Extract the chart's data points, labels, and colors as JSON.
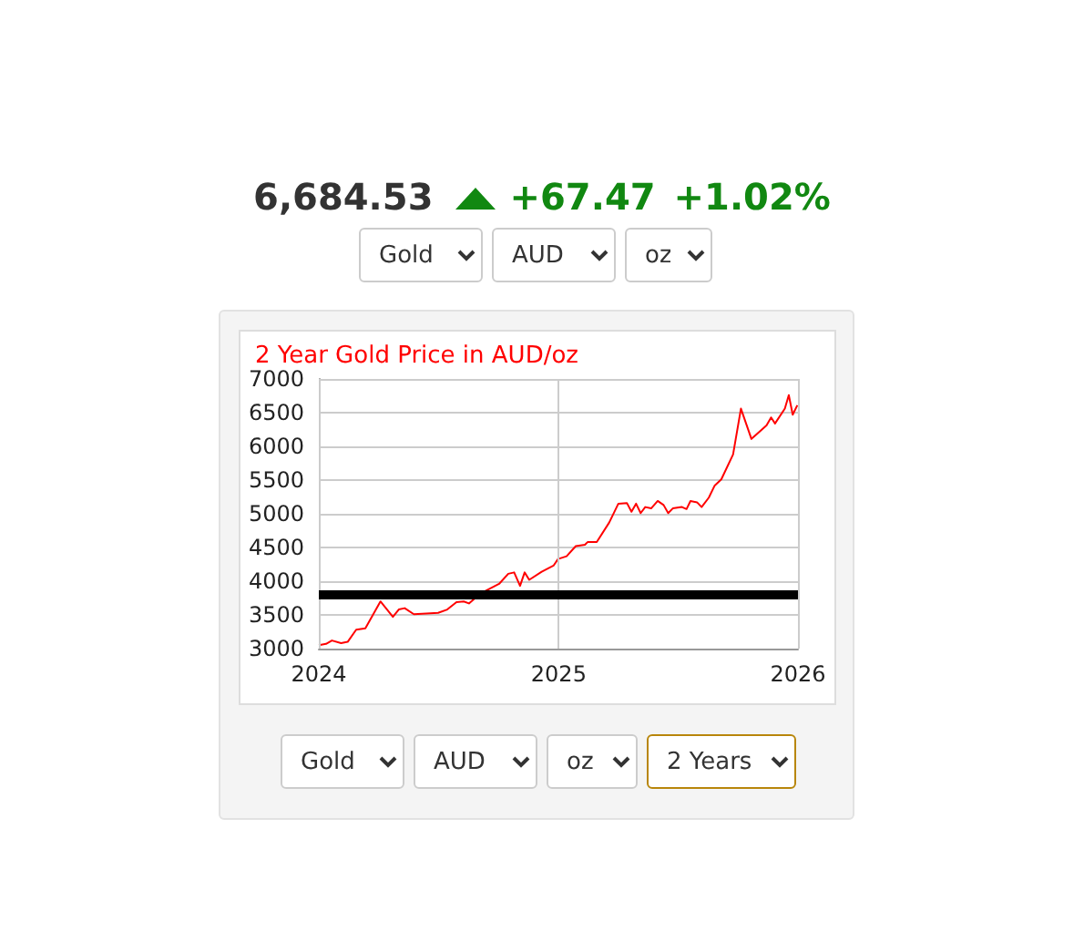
{
  "chart_data": {
    "type": "line",
    "title": "2 Year Gold Price in AUD/oz",
    "x": [
      "2024-01-01",
      "2024-01-12",
      "2024-01-21",
      "2024-02-04",
      "2024-02-14",
      "2024-02-27",
      "2024-03-12",
      "2024-04-04",
      "2024-04-23",
      "2024-05-02",
      "2024-05-11",
      "2024-05-25",
      "2024-06-13",
      "2024-07-01",
      "2024-07-15",
      "2024-07-29",
      "2024-08-09",
      "2024-08-17",
      "2024-09-04",
      "2024-10-02",
      "2024-10-16",
      "2024-10-25",
      "2024-11-03",
      "2024-11-10",
      "2024-11-17",
      "2024-12-06",
      "2024-12-24",
      "2024-12-31",
      "2025-01-13",
      "2025-01-27",
      "2025-02-10",
      "2025-02-14",
      "2025-02-28",
      "2025-03-19",
      "2025-04-02",
      "2025-04-15",
      "2025-04-22",
      "2025-04-29",
      "2025-05-06",
      "2025-05-13",
      "2025-05-22",
      "2025-06-01",
      "2025-06-10",
      "2025-06-17",
      "2025-06-24",
      "2025-07-08",
      "2025-07-15",
      "2025-07-21",
      "2025-07-31",
      "2025-08-07",
      "2025-08-18",
      "2025-08-27",
      "2025-09-06",
      "2025-09-24",
      "2025-10-06",
      "2025-10-22",
      "2025-10-31",
      "2025-11-14",
      "2025-11-21",
      "2025-11-27",
      "2025-12-12",
      "2025-12-18",
      "2025-12-24",
      "2025-12-31"
    ],
    "series": [
      {
        "color": "#ff0000",
        "values": [
          3050,
          3070,
          3120,
          3080,
          3100,
          3280,
          3300,
          3700,
          3470,
          3580,
          3600,
          3510,
          3520,
          3530,
          3580,
          3690,
          3700,
          3670,
          3820,
          3960,
          4110,
          4130,
          3930,
          4130,
          4020,
          4140,
          4230,
          4330,
          4370,
          4520,
          4540,
          4580,
          4580,
          4870,
          5150,
          5160,
          5030,
          5150,
          5010,
          5100,
          5080,
          5190,
          5130,
          5010,
          5080,
          5100,
          5070,
          5190,
          5170,
          5100,
          5240,
          5420,
          5510,
          5880,
          6560,
          6110,
          6190,
          6310,
          6430,
          6340,
          6560,
          6760,
          6470,
          6610
        ]
      }
    ],
    "xlim": [
      "2024",
      "2026"
    ],
    "xticks": [
      "2024",
      "2025",
      "2026"
    ],
    "ylim": [
      3000,
      7000
    ],
    "yticks": [
      3000,
      3500,
      4000,
      4500,
      5000,
      5500,
      6000,
      6500,
      7000
    ],
    "grid": true,
    "marker": "none",
    "line_style": "solid",
    "ref_lines": [
      {
        "axis": "y",
        "value": 3800,
        "color": "#000000"
      }
    ],
    "annotations": [
      "6,684.53",
      "+67.47",
      "+1.02%",
      "Gold",
      "AUD",
      "oz",
      "Gold",
      "AUD",
      "oz",
      "2 Years"
    ]
  }
}
